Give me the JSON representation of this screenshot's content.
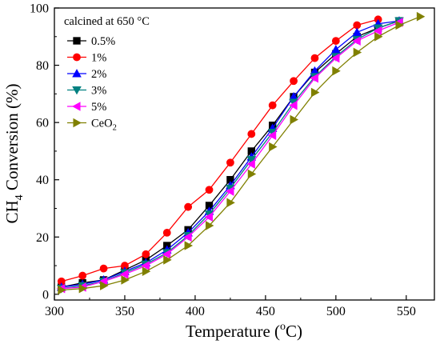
{
  "chart_data": {
    "type": "line",
    "title": "",
    "xlabel": "Temperature (",
    "xlabel_sup": "o",
    "xlabel_suffix": "C)",
    "ylabel_main": "CH",
    "ylabel_sub": "4",
    "ylabel_suffix": " Conversion (%)",
    "xlim": [
      300,
      570
    ],
    "ylim": [
      -2,
      100
    ],
    "xticks": [
      300,
      350,
      400,
      450,
      500,
      550
    ],
    "yticks": [
      0,
      20,
      40,
      60,
      80,
      100
    ],
    "grid": false,
    "legend": {
      "title": "calcined at 650 °C",
      "position": "top-left"
    },
    "series": [
      {
        "name": "0.5%",
        "color": "#000000",
        "marker": "square",
        "points": [
          [
            305,
            2.5
          ],
          [
            320,
            4
          ],
          [
            335,
            5
          ],
          [
            350,
            8.5
          ],
          [
            365,
            12
          ],
          [
            380,
            17
          ],
          [
            395,
            22.5
          ],
          [
            410,
            31
          ],
          [
            425,
            40
          ],
          [
            440,
            50
          ],
          [
            455,
            59
          ],
          [
            470,
            69
          ],
          [
            485,
            77.5
          ],
          [
            500,
            84
          ],
          [
            515,
            90
          ],
          [
            530,
            93
          ],
          [
            545,
            95.5
          ]
        ]
      },
      {
        "name": "1%",
        "color": "#ff0000",
        "marker": "circle",
        "points": [
          [
            305,
            4.5
          ],
          [
            320,
            6.5
          ],
          [
            335,
            9
          ],
          [
            350,
            10
          ],
          [
            365,
            14
          ],
          [
            380,
            21.5
          ],
          [
            395,
            30.5
          ],
          [
            410,
            36.5
          ],
          [
            425,
            46
          ],
          [
            440,
            56
          ],
          [
            455,
            66
          ],
          [
            470,
            74.5
          ],
          [
            485,
            82.5
          ],
          [
            500,
            88.5
          ],
          [
            515,
            94
          ],
          [
            530,
            96
          ]
        ]
      },
      {
        "name": "2%",
        "color": "#0000ff",
        "marker": "triangle-up",
        "points": [
          [
            305,
            2.5
          ],
          [
            320,
            3.5
          ],
          [
            335,
            5
          ],
          [
            350,
            8
          ],
          [
            365,
            11
          ],
          [
            380,
            15.5
          ],
          [
            395,
            21.5
          ],
          [
            410,
            29
          ],
          [
            425,
            38
          ],
          [
            440,
            48
          ],
          [
            455,
            58
          ],
          [
            470,
            69
          ],
          [
            485,
            78
          ],
          [
            500,
            85.5
          ],
          [
            515,
            91.5
          ],
          [
            530,
            94.5
          ],
          [
            545,
            95.5
          ]
        ]
      },
      {
        "name": "3%",
        "color": "#008080",
        "marker": "triangle-down",
        "points": [
          [
            305,
            2
          ],
          [
            320,
            3
          ],
          [
            335,
            4.5
          ],
          [
            350,
            7.5
          ],
          [
            365,
            10.5
          ],
          [
            380,
            14.5
          ],
          [
            395,
            20.5
          ],
          [
            410,
            28
          ],
          [
            425,
            37
          ],
          [
            440,
            47
          ],
          [
            455,
            56.5
          ],
          [
            470,
            67
          ],
          [
            485,
            76
          ],
          [
            500,
            83
          ],
          [
            515,
            89
          ],
          [
            530,
            93
          ],
          [
            545,
            95.5
          ]
        ]
      },
      {
        "name": "5%",
        "color": "#ff00ff",
        "marker": "triangle-left",
        "points": [
          [
            305,
            2
          ],
          [
            320,
            2.5
          ],
          [
            335,
            4.5
          ],
          [
            350,
            7
          ],
          [
            365,
            10
          ],
          [
            380,
            14
          ],
          [
            395,
            20
          ],
          [
            410,
            27
          ],
          [
            425,
            36
          ],
          [
            440,
            45.5
          ],
          [
            455,
            55.5
          ],
          [
            470,
            66
          ],
          [
            485,
            75.5
          ],
          [
            500,
            82.5
          ],
          [
            515,
            88.5
          ],
          [
            530,
            92
          ],
          [
            545,
            95
          ]
        ]
      },
      {
        "name": "CeO2",
        "name_main": "CeO",
        "name_sub": "2",
        "color": "#808000",
        "marker": "triangle-right",
        "points": [
          [
            305,
            1.5
          ],
          [
            320,
            2
          ],
          [
            335,
            3
          ],
          [
            350,
            5
          ],
          [
            365,
            8
          ],
          [
            380,
            12
          ],
          [
            395,
            17
          ],
          [
            410,
            24
          ],
          [
            425,
            32
          ],
          [
            440,
            42
          ],
          [
            455,
            51.5
          ],
          [
            470,
            61
          ],
          [
            485,
            70.5
          ],
          [
            500,
            78
          ],
          [
            515,
            84.5
          ],
          [
            530,
            90
          ],
          [
            545,
            94
          ],
          [
            560,
            97
          ]
        ]
      }
    ]
  }
}
